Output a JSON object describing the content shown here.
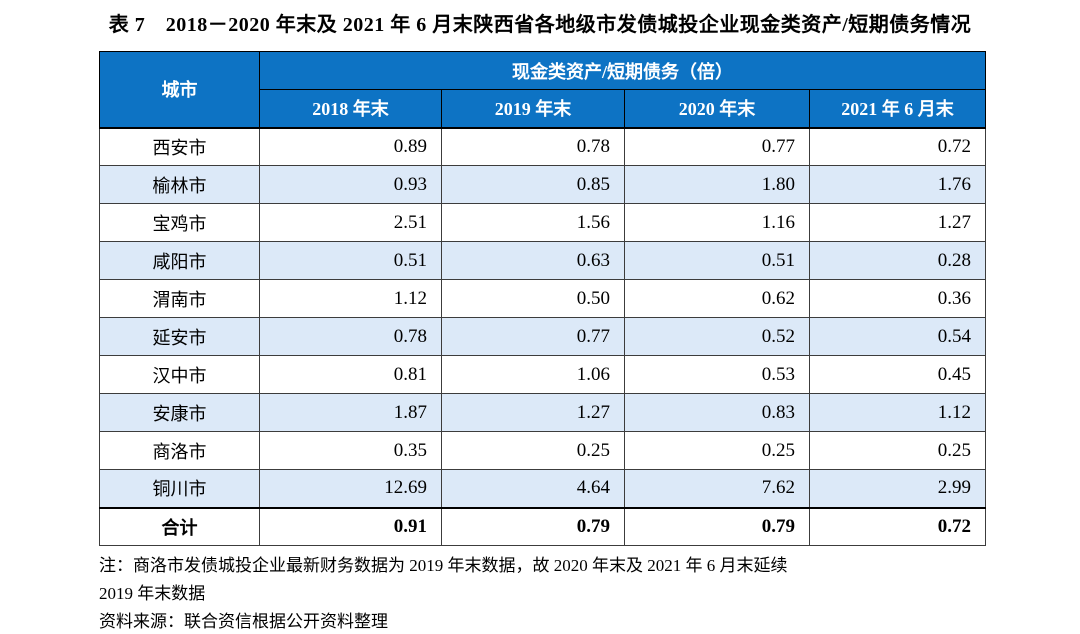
{
  "title": "表 7　2018－2020 年末及 2021 年 6 月末陕西省各地级市发债城投企业现金类资产/短期债务情况",
  "table": {
    "corner_header": "城市",
    "group_header": "现金类资产/短期债务（倍）",
    "col_headers": [
      "2018 年末",
      "2019 年末",
      "2020 年末",
      "2021 年 6 月末"
    ],
    "rows": [
      {
        "city": "西安市",
        "values": [
          "0.89",
          "0.78",
          "0.77",
          "0.72"
        ]
      },
      {
        "city": "榆林市",
        "values": [
          "0.93",
          "0.85",
          "1.80",
          "1.76"
        ]
      },
      {
        "city": "宝鸡市",
        "values": [
          "2.51",
          "1.56",
          "1.16",
          "1.27"
        ]
      },
      {
        "city": "咸阳市",
        "values": [
          "0.51",
          "0.63",
          "0.51",
          "0.28"
        ]
      },
      {
        "city": "渭南市",
        "values": [
          "1.12",
          "0.50",
          "0.62",
          "0.36"
        ]
      },
      {
        "city": "延安市",
        "values": [
          "0.78",
          "0.77",
          "0.52",
          "0.54"
        ]
      },
      {
        "city": "汉中市",
        "values": [
          "0.81",
          "1.06",
          "0.53",
          "0.45"
        ]
      },
      {
        "city": "安康市",
        "values": [
          "1.87",
          "1.27",
          "0.83",
          "1.12"
        ]
      },
      {
        "city": "商洛市",
        "values": [
          "0.35",
          "0.25",
          "0.25",
          "0.25"
        ]
      },
      {
        "city": "铜川市",
        "values": [
          "12.69",
          "4.64",
          "7.62",
          "2.99"
        ]
      }
    ],
    "total": {
      "city": "合计",
      "values": [
        "0.91",
        "0.79",
        "0.79",
        "0.72"
      ]
    }
  },
  "notes": {
    "note_line1": "注：商洛市发债城投企业最新财务数据为 2019 年末数据，故 2020 年末及 2021 年 6 月末延续",
    "note_line2": "2019 年末数据",
    "source": "资料来源：联合资信根据公开资料整理"
  },
  "colors": {
    "header_bg": "#0d73c4",
    "row_alt_bg": "#dce9f8",
    "border": "#3c3c3c",
    "header_text": "#ffffff"
  }
}
